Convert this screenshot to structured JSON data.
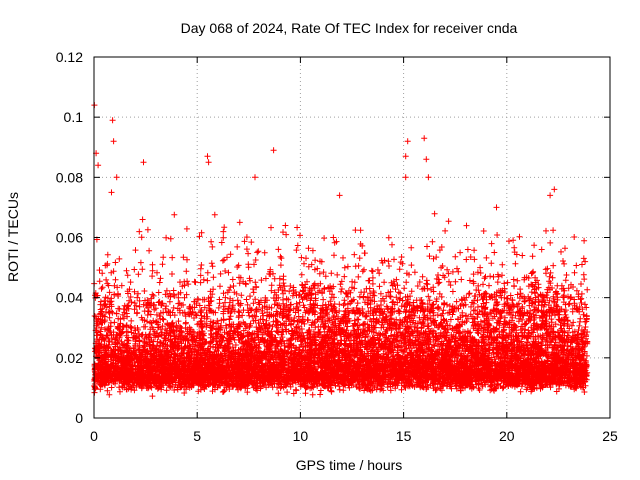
{
  "chart_data": {
    "type": "scatter",
    "title": "Day 068 of 2024, Rate Of TEC Index for receiver cnda",
    "xlabel": "GPS time / hours",
    "ylabel": "ROTI / TECUs",
    "xlim": [
      0,
      25
    ],
    "ylim": [
      0,
      0.12
    ],
    "x_ticks": [
      0,
      5,
      10,
      15,
      20,
      25
    ],
    "x_tick_labels": [
      "0",
      "5",
      "10",
      "15",
      "20",
      "25"
    ],
    "y_ticks": [
      0,
      0.02,
      0.04,
      0.06,
      0.08,
      0.1,
      0.12
    ],
    "y_tick_labels": [
      "0",
      "0.02",
      "0.04",
      "0.06",
      "0.08",
      "0.1",
      "0.12"
    ],
    "grid": true,
    "marker": "+",
    "color": "#ff0000",
    "series": [
      {
        "name": "ROTI",
        "x_range": [
          0,
          23.9
        ],
        "typical_range": [
          0.005,
          0.03
        ],
        "notable_points": [
          {
            "x": 0.02,
            "y": 0.104
          },
          {
            "x": 0.1,
            "y": 0.088
          },
          {
            "x": 0.2,
            "y": 0.084
          },
          {
            "x": 0.9,
            "y": 0.099
          },
          {
            "x": 0.95,
            "y": 0.092
          },
          {
            "x": 1.1,
            "y": 0.08
          },
          {
            "x": 0.85,
            "y": 0.075
          },
          {
            "x": 2.4,
            "y": 0.085
          },
          {
            "x": 5.5,
            "y": 0.087
          },
          {
            "x": 5.55,
            "y": 0.085
          },
          {
            "x": 8.7,
            "y": 0.089
          },
          {
            "x": 7.8,
            "y": 0.08
          },
          {
            "x": 11.9,
            "y": 0.074
          },
          {
            "x": 15.2,
            "y": 0.092
          },
          {
            "x": 15.1,
            "y": 0.087
          },
          {
            "x": 16.0,
            "y": 0.093
          },
          {
            "x": 16.1,
            "y": 0.086
          },
          {
            "x": 15.1,
            "y": 0.08
          },
          {
            "x": 16.2,
            "y": 0.08
          },
          {
            "x": 22.3,
            "y": 0.076
          },
          {
            "x": 22.1,
            "y": 0.074
          },
          {
            "x": 19.5,
            "y": 0.07
          }
        ]
      }
    ]
  }
}
